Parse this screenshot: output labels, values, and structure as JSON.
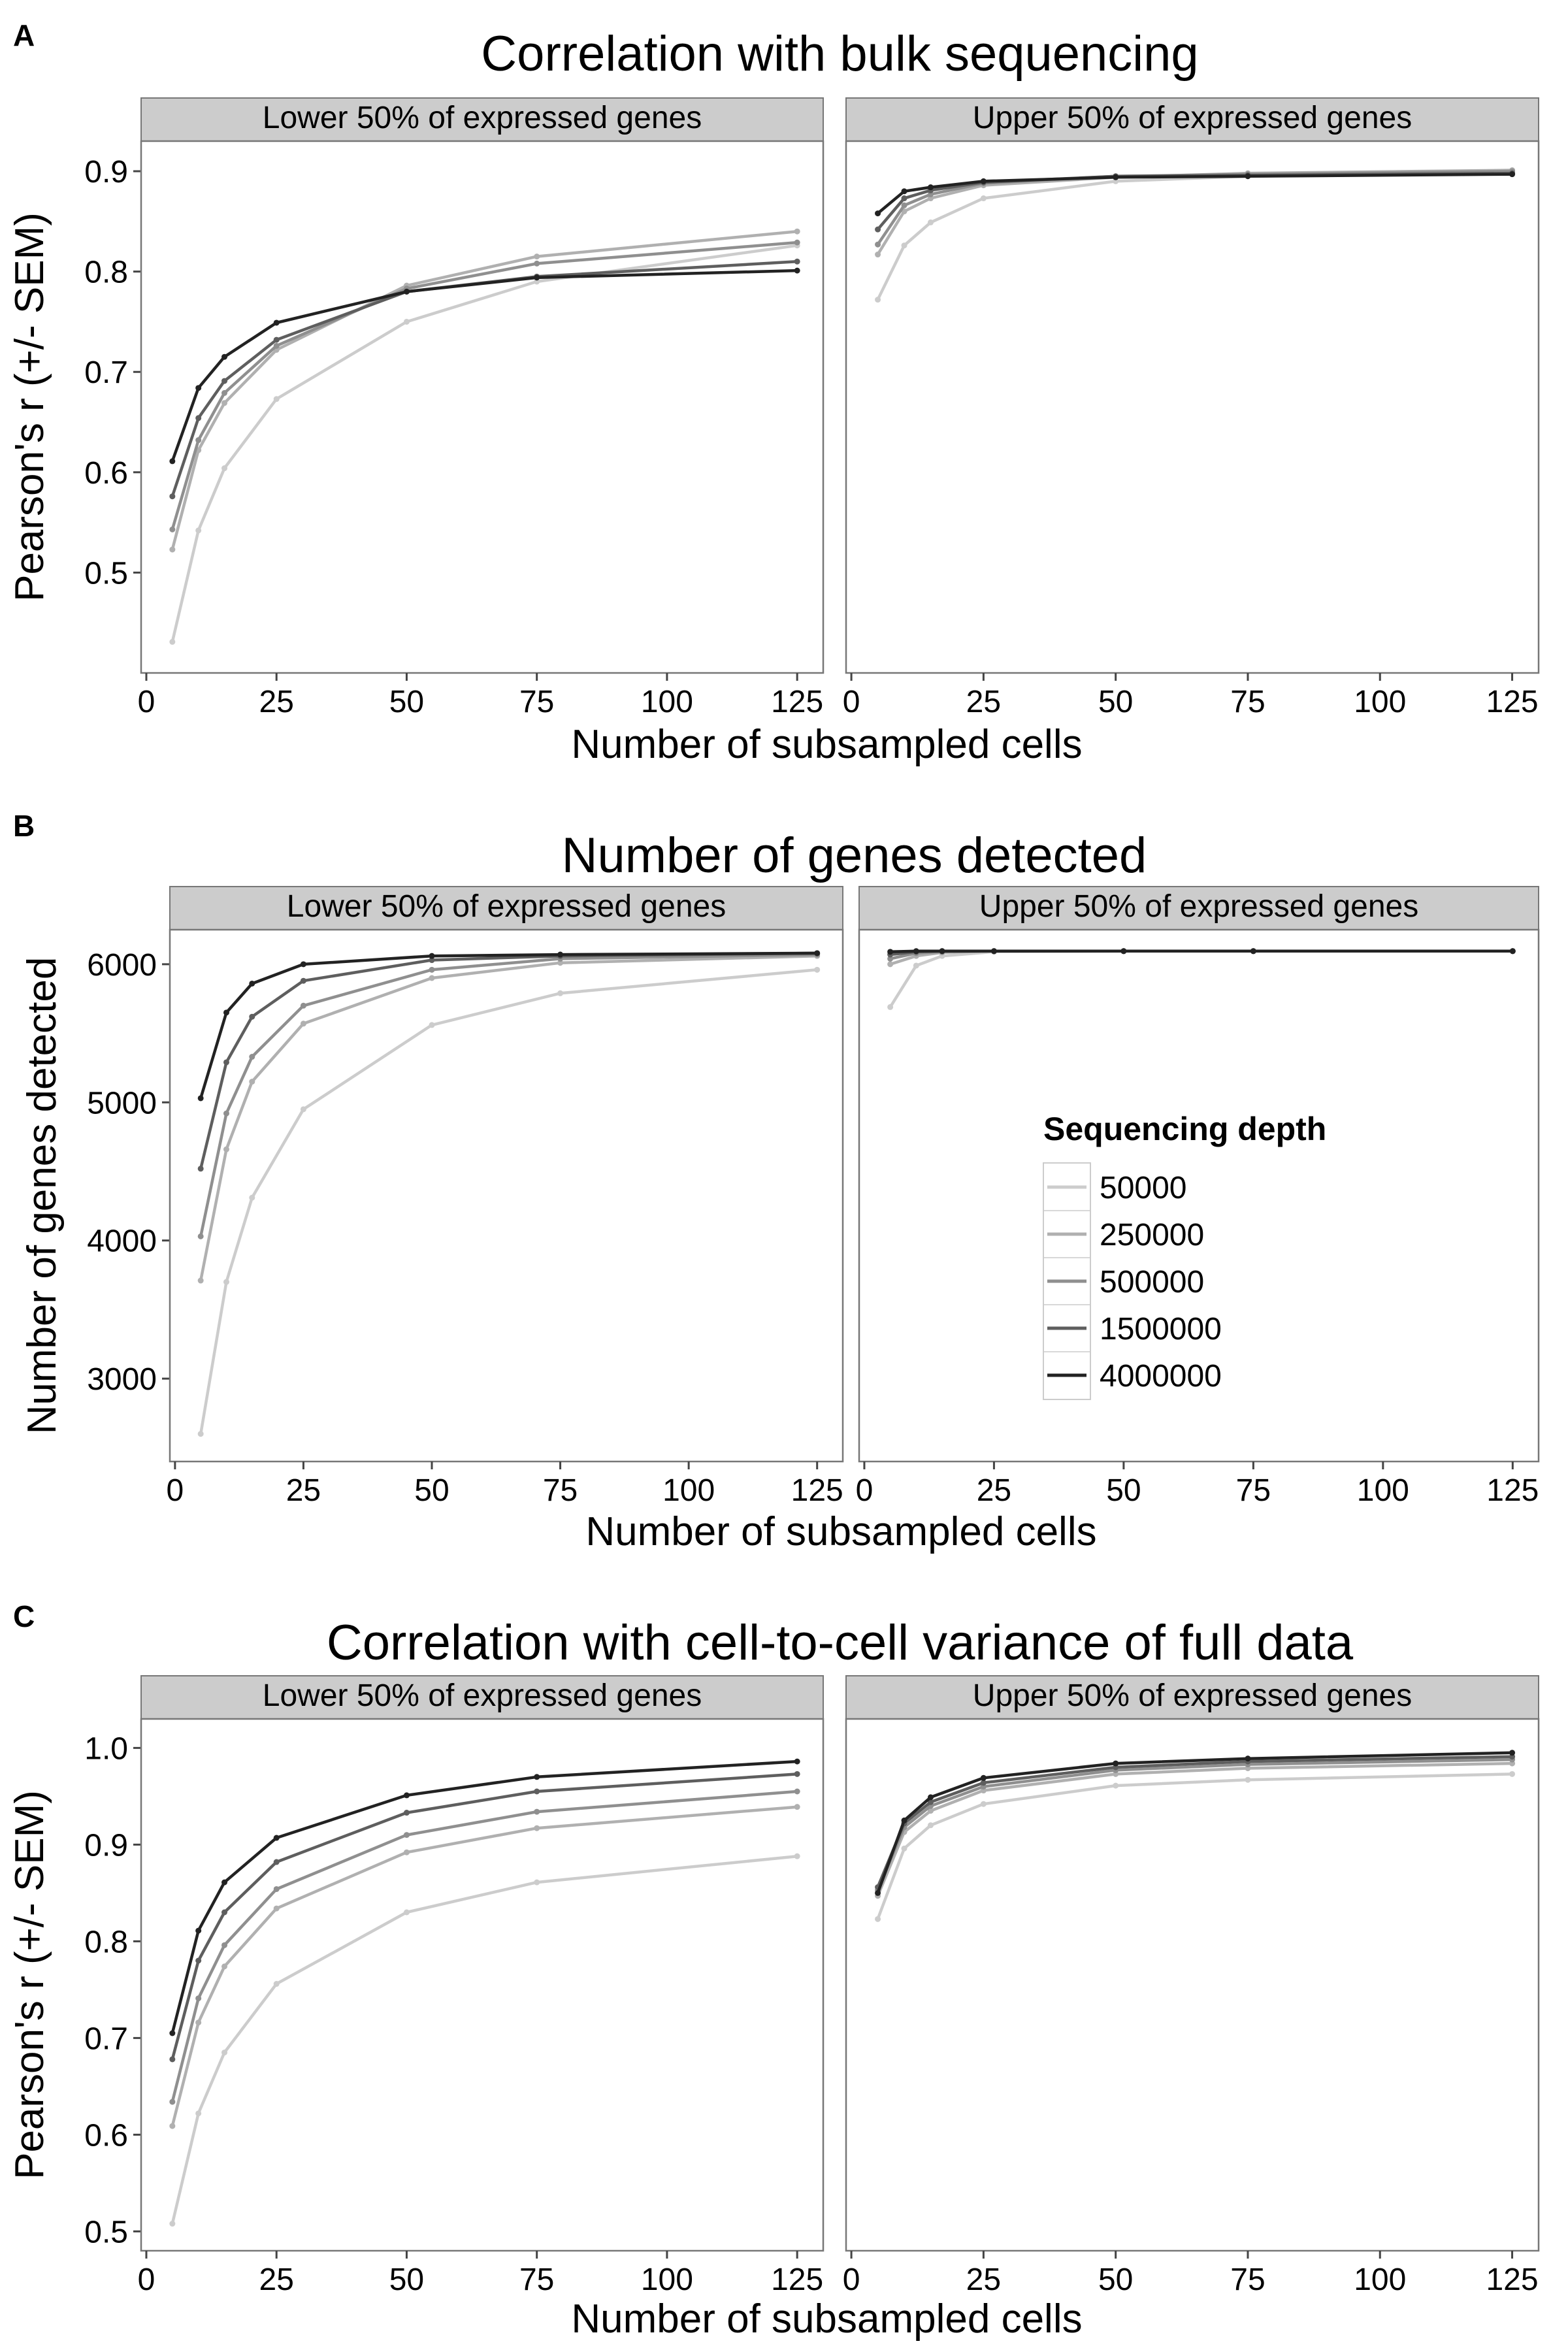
{
  "figure": {
    "series_names": [
      "50000",
      "250000",
      "500000",
      "1500000",
      "4000000"
    ],
    "series_colors": [
      "#cccccc",
      "#b0b0b0",
      "#8f8f8f",
      "#5e5e5e",
      "#222222"
    ],
    "legend": {
      "title": "Sequencing depth",
      "entries": [
        "50000",
        "250000",
        "500000",
        "1500000",
        "4000000"
      ],
      "panel": "B",
      "facet": "right",
      "position": "bottom-center"
    },
    "facet_strips": [
      "Lower 50% of expressed genes",
      "Upper 50% of expressed genes"
    ],
    "xlabel": "Number of subsampled cells",
    "x_ticks": [
      0,
      25,
      50,
      75,
      100,
      125
    ],
    "x_ticklabels": [
      "0",
      "25",
      "50",
      "75",
      "100",
      "125"
    ],
    "xlim": [
      -1,
      130
    ],
    "panel_background": "#ffffff",
    "strip_background": "#cccccc"
  },
  "chart_data": [
    {
      "type": "line",
      "panel_letter": "A",
      "title": "Correlation with bulk sequencing",
      "ylabel": "Pearson's r (+/- SEM)",
      "xlabel": "Number of subsampled cells",
      "ylim": [
        0.4,
        0.93
      ],
      "y_ticks": [
        0.5,
        0.6,
        0.7,
        0.8,
        0.9
      ],
      "y_ticklabels": [
        "0.5",
        "0.6",
        "0.7",
        "0.8",
        "0.9"
      ],
      "x": [
        5,
        10,
        15,
        25,
        50,
        75,
        125
      ],
      "facets": [
        {
          "strip": "Lower 50% of expressed genes",
          "series": [
            {
              "name": "50000",
              "values": [
                0.431,
                0.542,
                0.604,
                0.673,
                0.75,
                0.79,
                0.826
              ]
            },
            {
              "name": "250000",
              "values": [
                0.523,
                0.622,
                0.669,
                0.722,
                0.786,
                0.815,
                0.84
              ]
            },
            {
              "name": "500000",
              "values": [
                0.543,
                0.632,
                0.679,
                0.726,
                0.783,
                0.808,
                0.829
              ]
            },
            {
              "name": "1500000",
              "values": [
                0.576,
                0.654,
                0.691,
                0.732,
                0.78,
                0.795,
                0.81
              ]
            },
            {
              "name": "4000000",
              "values": [
                0.611,
                0.684,
                0.715,
                0.749,
                0.78,
                0.794,
                0.801
              ]
            }
          ]
        },
        {
          "strip": "Upper 50% of expressed genes",
          "series": [
            {
              "name": "50000",
              "values": [
                0.772,
                0.826,
                0.849,
                0.873,
                0.89,
                0.895,
                0.898
              ]
            },
            {
              "name": "250000",
              "values": [
                0.817,
                0.86,
                0.873,
                0.886,
                0.894,
                0.898,
                0.901
              ]
            },
            {
              "name": "500000",
              "values": [
                0.827,
                0.866,
                0.877,
                0.888,
                0.895,
                0.897,
                0.9
              ]
            },
            {
              "name": "1500000",
              "values": [
                0.842,
                0.873,
                0.881,
                0.889,
                0.895,
                0.896,
                0.898
              ]
            },
            {
              "name": "4000000",
              "values": [
                0.858,
                0.88,
                0.884,
                0.89,
                0.894,
                0.895,
                0.897
              ]
            }
          ]
        }
      ]
    },
    {
      "type": "line",
      "panel_letter": "B",
      "title": "Number of genes detected",
      "ylabel": "Number of genes detected",
      "xlabel": "Number of subsampled cells",
      "ylim": [
        2400,
        6250
      ],
      "y_ticks": [
        3000,
        4000,
        5000,
        6000
      ],
      "y_ticklabels": [
        "3000",
        "4000",
        "5000",
        "6000"
      ],
      "x": [
        5,
        10,
        15,
        25,
        50,
        75,
        125
      ],
      "facets": [
        {
          "strip": "Lower 50% of expressed genes",
          "series": [
            {
              "name": "50000",
              "values": [
                2600,
                3700,
                4310,
                4950,
                5560,
                5790,
                5960
              ]
            },
            {
              "name": "250000",
              "values": [
                3710,
                4660,
                5150,
                5570,
                5900,
                6010,
                6060
              ]
            },
            {
              "name": "500000",
              "values": [
                4030,
                4920,
                5330,
                5700,
                5960,
                6040,
                6070
              ]
            },
            {
              "name": "1500000",
              "values": [
                4520,
                5290,
                5620,
                5880,
                6030,
                6060,
                6080
              ]
            },
            {
              "name": "4000000",
              "values": [
                5030,
                5650,
                5860,
                6000,
                6060,
                6070,
                6080
              ]
            }
          ]
        },
        {
          "strip": "Upper 50% of expressed genes",
          "series": [
            {
              "name": "50000",
              "values": [
                5690,
                5990,
                6060,
                6090,
                6095,
                6095,
                6095
              ]
            },
            {
              "name": "250000",
              "values": [
                6000,
                6060,
                6085,
                6095,
                6095,
                6095,
                6095
              ]
            },
            {
              "name": "500000",
              "values": [
                6040,
                6080,
                6090,
                6095,
                6095,
                6095,
                6095
              ]
            },
            {
              "name": "1500000",
              "values": [
                6070,
                6090,
                6095,
                6095,
                6095,
                6095,
                6095
              ]
            },
            {
              "name": "4000000",
              "values": [
                6090,
                6095,
                6095,
                6095,
                6095,
                6095,
                6095
              ]
            }
          ]
        }
      ]
    },
    {
      "type": "line",
      "panel_letter": "C",
      "title": "Correlation with cell-to-cell variance of full data",
      "ylabel": "Pearson's r (+/- SEM)",
      "xlabel": "Number of subsampled cells",
      "ylim": [
        0.48,
        1.03
      ],
      "y_ticks": [
        0.5,
        0.6,
        0.7,
        0.8,
        0.9,
        1.0
      ],
      "y_ticklabels": [
        "0.5",
        "0.6",
        "0.7",
        "0.8",
        "0.9",
        "1.0"
      ],
      "x": [
        5,
        10,
        15,
        25,
        50,
        75,
        125
      ],
      "facets": [
        {
          "strip": "Lower 50% of expressed genes",
          "series": [
            {
              "name": "50000",
              "values": [
                0.508,
                0.622,
                0.685,
                0.756,
                0.83,
                0.861,
                0.888
              ]
            },
            {
              "name": "250000",
              "values": [
                0.609,
                0.716,
                0.774,
                0.834,
                0.892,
                0.917,
                0.939
              ]
            },
            {
              "name": "500000",
              "values": [
                0.634,
                0.741,
                0.796,
                0.854,
                0.91,
                0.934,
                0.955
              ]
            },
            {
              "name": "1500000",
              "values": [
                0.678,
                0.78,
                0.83,
                0.882,
                0.933,
                0.955,
                0.973
              ]
            },
            {
              "name": "4000000",
              "values": [
                0.705,
                0.811,
                0.861,
                0.907,
                0.951,
                0.97,
                0.986
              ]
            }
          ]
        },
        {
          "strip": "Upper 50% of expressed genes",
          "series": [
            {
              "name": "50000",
              "values": [
                0.823,
                0.896,
                0.92,
                0.942,
                0.961,
                0.967,
                0.973
              ]
            },
            {
              "name": "250000",
              "values": [
                0.847,
                0.913,
                0.935,
                0.956,
                0.973,
                0.979,
                0.984
              ]
            },
            {
              "name": "500000",
              "values": [
                0.853,
                0.918,
                0.94,
                0.96,
                0.977,
                0.983,
                0.988
              ]
            },
            {
              "name": "1500000",
              "values": [
                0.856,
                0.922,
                0.944,
                0.964,
                0.98,
                0.986,
                0.991
              ]
            },
            {
              "name": "4000000",
              "values": [
                0.85,
                0.925,
                0.949,
                0.969,
                0.984,
                0.989,
                0.995
              ]
            }
          ]
        }
      ]
    }
  ]
}
